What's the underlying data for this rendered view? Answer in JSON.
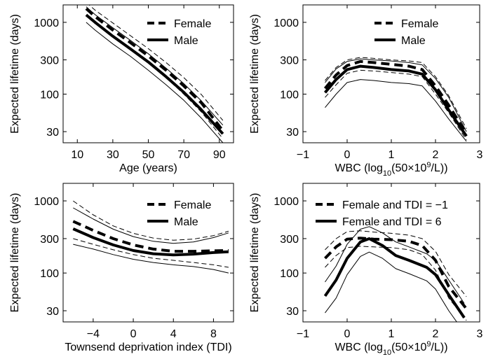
{
  "chart_data": [
    {
      "type": "line",
      "xlabel": "Age (years)",
      "ylabel": "Expected lifetime (days)",
      "yscale": "log",
      "xlim": [
        2,
        98
      ],
      "ylim": [
        21,
        1750
      ],
      "xticks": [
        10,
        30,
        50,
        70,
        90
      ],
      "xtick_labels": [
        "10",
        "30",
        "50",
        "70",
        "90"
      ],
      "yticks": [
        30,
        100,
        300,
        1000
      ],
      "ytick_labels": [
        "30",
        "100",
        "300",
        "1000"
      ],
      "legend_position": "top-right",
      "legend": [
        "Female",
        "Male"
      ],
      "series": [
        {
          "name": "Female",
          "style": "thick-dashed",
          "x": [
            15,
            20,
            30,
            40,
            50,
            60,
            70,
            80,
            92
          ],
          "y": [
            1550,
            1200,
            780,
            520,
            340,
            215,
            130,
            75,
            31
          ]
        },
        {
          "name": "Male",
          "style": "thick-solid",
          "x": [
            15,
            20,
            30,
            40,
            50,
            60,
            70,
            80,
            92
          ],
          "y": [
            1270,
            1000,
            640,
            425,
            280,
            175,
            106,
            60,
            28
          ]
        },
        {
          "style": "thin-dashed",
          "x": [
            15,
            20,
            30,
            40,
            50,
            60,
            70,
            80,
            92
          ],
          "y": [
            1900,
            1480,
            980,
            650,
            430,
            275,
            170,
            98,
            43
          ]
        },
        {
          "style": "thin-dashed",
          "x": [
            15,
            20,
            30,
            40,
            50,
            60,
            70,
            80,
            92
          ],
          "y": [
            1250,
            960,
            630,
            415,
            270,
            170,
            100,
            56,
            24
          ]
        },
        {
          "style": "thin-solid",
          "x": [
            15,
            20,
            30,
            40,
            50,
            60,
            70,
            80,
            92
          ],
          "y": [
            1650,
            1280,
            840,
            560,
            365,
            230,
            140,
            80,
            37
          ]
        },
        {
          "style": "thin-solid",
          "x": [
            15,
            20,
            30,
            40,
            50,
            60,
            70,
            80,
            92
          ],
          "y": [
            1000,
            780,
            500,
            335,
            215,
            135,
            82,
            46,
            21
          ]
        }
      ]
    },
    {
      "type": "line",
      "xlabel": "WBC (log10(50×10^9/L))",
      "ylabel": "Expected lifetime (days)",
      "yscale": "log",
      "xlim": [
        -1,
        3
      ],
      "ylim": [
        21,
        1750
      ],
      "xticks": [
        -1,
        0,
        1,
        2,
        3
      ],
      "xtick_labels": [
        "−1",
        "0",
        "1",
        "2",
        "3"
      ],
      "yticks": [
        30,
        100,
        300,
        1000
      ],
      "ytick_labels": [
        "30",
        "100",
        "300",
        "1000"
      ],
      "legend_position": "top-right",
      "legend": [
        "Female",
        "Male"
      ],
      "series": [
        {
          "name": "Female",
          "style": "thick-dashed",
          "x": [
            -0.5,
            -0.25,
            0,
            0.3,
            0.6,
            1.0,
            1.4,
            1.7,
            2.0,
            2.3,
            2.7
          ],
          "y": [
            120,
            185,
            250,
            285,
            275,
            260,
            245,
            220,
            130,
            70,
            28
          ]
        },
        {
          "name": "Male",
          "style": "thick-solid",
          "x": [
            -0.5,
            -0.25,
            0,
            0.3,
            0.6,
            1.0,
            1.4,
            1.7,
            2.0,
            2.3,
            2.7
          ],
          "y": [
            105,
            160,
            220,
            245,
            235,
            220,
            210,
            190,
            115,
            60,
            26
          ]
        },
        {
          "style": "thin-dashed",
          "x": [
            -0.5,
            -0.25,
            0,
            0.3,
            0.6,
            1.0,
            1.4,
            1.7,
            2.0,
            2.3,
            2.7
          ],
          "y": [
            155,
            235,
            300,
            325,
            315,
            300,
            290,
            275,
            175,
            95,
            33
          ]
        },
        {
          "style": "thin-dashed",
          "x": [
            -0.5,
            -0.25,
            0,
            0.3,
            0.6,
            1.0,
            1.4,
            1.7,
            2.0,
            2.3,
            2.7
          ],
          "y": [
            90,
            135,
            195,
            215,
            210,
            200,
            190,
            175,
            100,
            55,
            23
          ]
        },
        {
          "style": "thin-solid",
          "x": [
            -0.5,
            -0.25,
            0,
            0.3,
            0.6,
            1.0,
            1.4,
            1.7,
            2.0,
            2.3,
            2.7
          ],
          "y": [
            145,
            225,
            285,
            310,
            300,
            290,
            275,
            255,
            165,
            90,
            30
          ]
        },
        {
          "style": "thin-solid",
          "x": [
            -0.5,
            -0.25,
            0,
            0.3,
            0.6,
            1.0,
            1.4,
            1.7,
            2.0,
            2.3,
            2.7
          ],
          "y": [
            65,
            100,
            145,
            160,
            155,
            145,
            140,
            130,
            80,
            45,
            22
          ]
        }
      ]
    },
    {
      "type": "line",
      "xlabel": "Townsend deprivation index (TDI)",
      "ylabel": "Expected lifetime (days)",
      "yscale": "log",
      "xlim": [
        -7,
        10
      ],
      "ylim": [
        21,
        1750
      ],
      "xticks": [
        -4,
        0,
        4,
        8
      ],
      "xtick_labels": [
        "−4",
        "0",
        "4",
        "8"
      ],
      "yticks": [
        30,
        100,
        300,
        1000
      ],
      "ytick_labels": [
        "30",
        "100",
        "300",
        "1000"
      ],
      "legend_position": "top-right",
      "legend": [
        "Female",
        "Male"
      ],
      "series": [
        {
          "name": "Female",
          "style": "thick-dashed",
          "x": [
            -6,
            -4,
            -2,
            0,
            2,
            4,
            6,
            8,
            9.5
          ],
          "y": [
            520,
            390,
            300,
            245,
            215,
            200,
            200,
            203,
            205
          ]
        },
        {
          "name": "Male",
          "style": "thick-solid",
          "x": [
            -6,
            -4,
            -2,
            0,
            2,
            4,
            6,
            8,
            9.5
          ],
          "y": [
            410,
            310,
            245,
            205,
            185,
            178,
            183,
            192,
            197
          ]
        },
        {
          "style": "thin-dashed",
          "x": [
            -6,
            -4,
            -2,
            0,
            2,
            4,
            6,
            8,
            9.5
          ],
          "y": [
            1000,
            640,
            450,
            355,
            305,
            285,
            295,
            330,
            380
          ]
        },
        {
          "style": "thin-dashed",
          "x": [
            -6,
            -4,
            -2,
            0,
            2,
            4,
            6,
            8,
            9.5
          ],
          "y": [
            300,
            250,
            210,
            180,
            160,
            150,
            140,
            130,
            120
          ]
        },
        {
          "style": "thin-solid",
          "x": [
            -6,
            -4,
            -2,
            0,
            2,
            4,
            6,
            8,
            9.5
          ],
          "y": [
            800,
            560,
            405,
            320,
            275,
            258,
            270,
            310,
            360
          ]
        },
        {
          "style": "thin-solid",
          "x": [
            -6,
            -4,
            -2,
            0,
            2,
            4,
            6,
            8,
            9.5
          ],
          "y": [
            250,
            215,
            180,
            155,
            140,
            130,
            123,
            112,
            100
          ]
        }
      ]
    },
    {
      "type": "line",
      "xlabel": "WBC (log10(50×10^9/L))",
      "ylabel": "Expected lifetime (days)",
      "yscale": "log",
      "xlim": [
        -1,
        3
      ],
      "ylim": [
        21,
        1750
      ],
      "xticks": [
        -1,
        0,
        1,
        2,
        3
      ],
      "xtick_labels": [
        "−1",
        "0",
        "1",
        "2",
        "3"
      ],
      "yticks": [
        30,
        100,
        300,
        1000
      ],
      "ytick_labels": [
        "30",
        "100",
        "300",
        "1000"
      ],
      "legend_position": "top-left",
      "legend": [
        "Female and TDI = −1",
        "Female and TDI = 6"
      ],
      "series": [
        {
          "name": "Female and TDI = −1",
          "style": "thick-dashed",
          "x": [
            -0.5,
            -0.25,
            0,
            0.3,
            0.6,
            1.0,
            1.4,
            1.7,
            2.0,
            2.3,
            2.7
          ],
          "y": [
            160,
            230,
            295,
            305,
            295,
            290,
            275,
            240,
            150,
            65,
            32
          ]
        },
        {
          "name": "Female and TDI = 6",
          "style": "thick-solid",
          "x": [
            -0.5,
            -0.25,
            0,
            0.3,
            0.5,
            0.8,
            1.1,
            1.4,
            1.8,
            2.0,
            2.3,
            2.65
          ],
          "y": [
            48,
            80,
            160,
            270,
            300,
            240,
            175,
            150,
            120,
            95,
            50,
            24
          ]
        },
        {
          "style": "thin-dashed",
          "x": [
            -0.5,
            -0.25,
            0,
            0.3,
            0.6,
            1.0,
            1.4,
            1.7,
            2.0,
            2.3,
            2.7
          ],
          "y": [
            210,
            300,
            375,
            385,
            370,
            355,
            335,
            300,
            200,
            95,
            47
          ]
        },
        {
          "style": "thin-dashed",
          "x": [
            -0.5,
            -0.25,
            0,
            0.3,
            0.6,
            1.0,
            1.4,
            1.7,
            2.0,
            2.3,
            2.7
          ],
          "y": [
            120,
            175,
            225,
            235,
            230,
            225,
            210,
            180,
            110,
            45,
            22
          ]
        },
        {
          "style": "thin-solid",
          "x": [
            -0.5,
            -0.25,
            0,
            0.3,
            0.5,
            0.8,
            1.1,
            1.4,
            1.8,
            2.0,
            2.3,
            2.65
          ],
          "y": [
            75,
            125,
            250,
            405,
            440,
            360,
            270,
            230,
            185,
            150,
            80,
            38
          ]
        },
        {
          "style": "thin-solid",
          "x": [
            -0.5,
            -0.25,
            0,
            0.3,
            0.5,
            0.8,
            1.1,
            1.4,
            1.8,
            2.0,
            2.3,
            2.65
          ],
          "y": [
            28,
            45,
            95,
            170,
            195,
            160,
            115,
            98,
            78,
            60,
            30,
            15
          ]
        }
      ]
    }
  ]
}
